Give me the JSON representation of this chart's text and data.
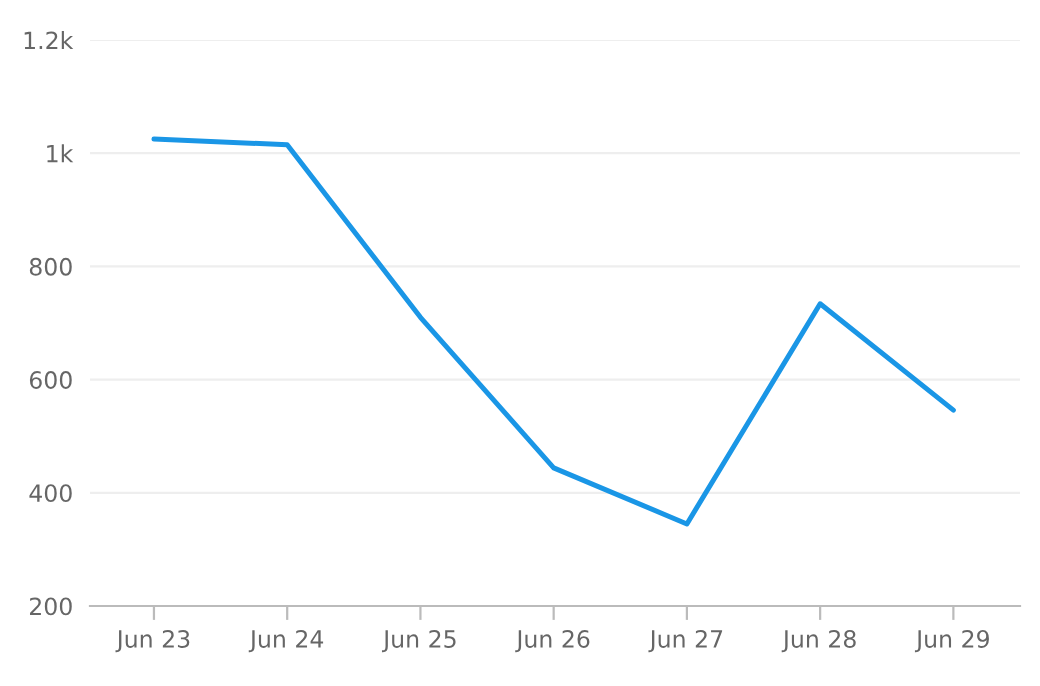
{
  "chart_data": {
    "type": "line",
    "categories": [
      "Jun 23",
      "Jun 24",
      "Jun 25",
      "Jun 26",
      "Jun 27",
      "Jun 28",
      "Jun 29"
    ],
    "series": [
      {
        "color": "#1a96e6",
        "values": [
          1025,
          1015,
          710,
          444,
          345,
          734,
          546
        ]
      }
    ],
    "ylim": [
      200,
      1200
    ],
    "yticks": [
      200,
      400,
      600,
      800,
      {
        "value": 1000,
        "label": "1k"
      },
      {
        "value": 1200,
        "label": "1.2k"
      }
    ],
    "grid": "y",
    "marker": "none",
    "line_style": "solid"
  }
}
